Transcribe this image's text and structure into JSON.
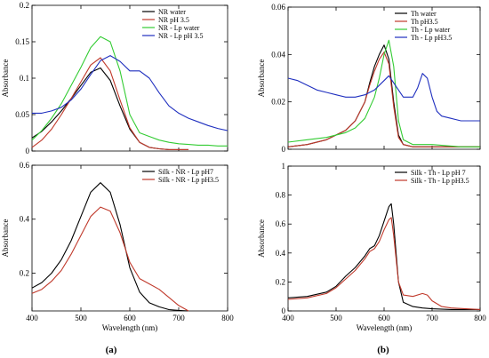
{
  "panel_labels": [
    "(a)",
    "(b)"
  ],
  "chart_data": [
    {
      "type": "line",
      "id": "a-top",
      "title": "",
      "xlabel": "",
      "ylabel": "Absorbance",
      "xlim": [
        400,
        800
      ],
      "ylim": [
        0,
        0.2
      ],
      "xticks": [],
      "yticks": [
        0,
        0.05,
        0.1,
        0.15,
        0.2
      ],
      "ytick_labels": [
        "0",
        "0.05",
        "0.1",
        "0.15",
        "0.2"
      ],
      "legend_position": "top-right",
      "series": [
        {
          "name": "NR water",
          "color": "#000000",
          "x": [
            400,
            420,
            440,
            460,
            480,
            500,
            520,
            540,
            560,
            580,
            600,
            620,
            640,
            660,
            680,
            700,
            720
          ],
          "y": [
            0.018,
            0.027,
            0.04,
            0.055,
            0.072,
            0.09,
            0.108,
            0.114,
            0.097,
            0.062,
            0.03,
            0.012,
            0.005,
            0.003,
            0.002,
            0.002,
            0.002
          ]
        },
        {
          "name": "NR pH 3.5",
          "color": "#c0392b",
          "x": [
            400,
            420,
            440,
            460,
            480,
            500,
            520,
            540,
            560,
            580,
            600,
            620,
            640,
            660,
            680,
            700,
            720
          ],
          "y": [
            0.005,
            0.015,
            0.03,
            0.05,
            0.072,
            0.095,
            0.118,
            0.128,
            0.11,
            0.07,
            0.032,
            0.012,
            0.005,
            0.003,
            0.002,
            0.002,
            0.002
          ]
        },
        {
          "name": "NR - Lp water",
          "color": "#33cc33",
          "x": [
            400,
            420,
            440,
            460,
            480,
            500,
            520,
            540,
            560,
            580,
            600,
            620,
            640,
            660,
            680,
            700,
            720,
            740,
            760,
            780,
            800
          ],
          "y": [
            0.015,
            0.028,
            0.045,
            0.065,
            0.09,
            0.115,
            0.142,
            0.157,
            0.15,
            0.11,
            0.05,
            0.025,
            0.02,
            0.015,
            0.012,
            0.01,
            0.009,
            0.008,
            0.008,
            0.007,
            0.007
          ]
        },
        {
          "name": "NR - Lp pH 3.5",
          "color": "#1f2fbf",
          "x": [
            400,
            420,
            440,
            460,
            480,
            500,
            520,
            540,
            560,
            580,
            600,
            620,
            640,
            660,
            680,
            700,
            720,
            740,
            760,
            780,
            800
          ],
          "y": [
            0.052,
            0.052,
            0.055,
            0.06,
            0.07,
            0.085,
            0.105,
            0.124,
            0.131,
            0.123,
            0.11,
            0.11,
            0.1,
            0.08,
            0.062,
            0.052,
            0.045,
            0.04,
            0.035,
            0.031,
            0.028
          ]
        }
      ]
    },
    {
      "type": "line",
      "id": "a-bottom",
      "title": "",
      "xlabel": "Wavelength (nm)",
      "ylabel": "Absorbance",
      "xlim": [
        400,
        800
      ],
      "ylim": [
        0.06,
        0.6
      ],
      "xticks": [
        400,
        500,
        600,
        700,
        800
      ],
      "xtick_labels": [
        "400",
        "500",
        "600",
        "700",
        "800"
      ],
      "yticks": [
        0.2,
        0.4,
        0.6
      ],
      "ytick_labels": [
        "0.2",
        "0.4",
        "0.6"
      ],
      "legend_position": "top-right",
      "series": [
        {
          "name": "Silk - NR - Lp pH7",
          "color": "#000000",
          "x": [
            400,
            420,
            440,
            460,
            480,
            500,
            520,
            540,
            560,
            580,
            600,
            620,
            640,
            660,
            680,
            700,
            720
          ],
          "y": [
            0.145,
            0.165,
            0.2,
            0.25,
            0.32,
            0.41,
            0.5,
            0.535,
            0.5,
            0.38,
            0.22,
            0.13,
            0.09,
            0.075,
            0.065,
            0.062,
            0.06
          ]
        },
        {
          "name": "Silk - NR - Lp pH3.5",
          "color": "#c0392b",
          "x": [
            400,
            420,
            440,
            460,
            480,
            500,
            520,
            540,
            560,
            580,
            600,
            620,
            640,
            660,
            680,
            700,
            720
          ],
          "y": [
            0.125,
            0.14,
            0.17,
            0.21,
            0.27,
            0.34,
            0.41,
            0.445,
            0.43,
            0.35,
            0.24,
            0.18,
            0.16,
            0.14,
            0.11,
            0.08,
            0.06
          ]
        }
      ]
    },
    {
      "type": "line",
      "id": "b-top",
      "title": "",
      "xlabel": "",
      "ylabel": "Absorbance",
      "xlim": [
        400,
        800
      ],
      "ylim": [
        0,
        0.06
      ],
      "xticks": [],
      "yticks": [
        0,
        0.02,
        0.04,
        0.06
      ],
      "ytick_labels": [
        "0",
        "0.02",
        "0.04",
        "0.06"
      ],
      "legend_position": "top-right",
      "series": [
        {
          "name": "Th water",
          "color": "#000000",
          "x": [
            400,
            440,
            480,
            520,
            540,
            560,
            570,
            580,
            590,
            600,
            610,
            620,
            630,
            640,
            660,
            700,
            760,
            800
          ],
          "y": [
            0.001,
            0.002,
            0.004,
            0.008,
            0.012,
            0.02,
            0.028,
            0.035,
            0.04,
            0.044,
            0.038,
            0.02,
            0.006,
            0.002,
            0.001,
            0.001,
            0.001,
            0.001
          ]
        },
        {
          "name": "Th pH3.5",
          "color": "#c0392b",
          "x": [
            400,
            440,
            480,
            520,
            540,
            560,
            570,
            580,
            590,
            600,
            610,
            620,
            630,
            640,
            660,
            700,
            760,
            800
          ],
          "y": [
            0.001,
            0.002,
            0.004,
            0.008,
            0.012,
            0.02,
            0.027,
            0.033,
            0.038,
            0.041,
            0.036,
            0.018,
            0.005,
            0.002,
            0.001,
            0.001,
            0.001,
            0.001
          ]
        },
        {
          "name": "Th - Lp water",
          "color": "#33cc33",
          "x": [
            400,
            440,
            480,
            520,
            540,
            560,
            580,
            590,
            600,
            610,
            620,
            630,
            640,
            660,
            700,
            760,
            800
          ],
          "y": [
            0.003,
            0.004,
            0.005,
            0.007,
            0.009,
            0.013,
            0.022,
            0.03,
            0.04,
            0.046,
            0.035,
            0.012,
            0.004,
            0.002,
            0.002,
            0.001,
            0.001
          ]
        },
        {
          "name": "Th - Lp pH3.5",
          "color": "#1f2fbf",
          "x": [
            400,
            420,
            440,
            460,
            480,
            500,
            520,
            540,
            560,
            580,
            600,
            610,
            620,
            640,
            660,
            670,
            680,
            690,
            700,
            710,
            720,
            740,
            760,
            780,
            800
          ],
          "y": [
            0.03,
            0.029,
            0.027,
            0.025,
            0.024,
            0.023,
            0.022,
            0.022,
            0.023,
            0.025,
            0.029,
            0.031,
            0.028,
            0.022,
            0.022,
            0.026,
            0.032,
            0.03,
            0.022,
            0.016,
            0.014,
            0.013,
            0.012,
            0.012,
            0.012
          ]
        }
      ]
    },
    {
      "type": "line",
      "id": "b-bottom",
      "title": "",
      "xlabel": "Wavelength (nm)",
      "ylabel": "Absorbance",
      "xlim": [
        400,
        800
      ],
      "ylim": [
        0,
        1
      ],
      "xticks": [
        400,
        500,
        600,
        700,
        800
      ],
      "xtick_labels": [
        "400",
        "500",
        "600",
        "700",
        "800"
      ],
      "yticks": [
        0,
        0.2,
        0.4,
        0.6,
        0.8,
        1
      ],
      "ytick_labels": [
        "0",
        "0.2",
        "0.4",
        "0.6",
        "0.8",
        "1"
      ],
      "legend_position": "top-right",
      "series": [
        {
          "name": "Silk - Th - Lp pH 7",
          "color": "#000000",
          "x": [
            400,
            440,
            480,
            500,
            520,
            540,
            560,
            570,
            580,
            590,
            600,
            610,
            615,
            620,
            630,
            640,
            660,
            680,
            700,
            740,
            800
          ],
          "y": [
            0.09,
            0.1,
            0.13,
            0.17,
            0.24,
            0.3,
            0.38,
            0.43,
            0.45,
            0.52,
            0.62,
            0.72,
            0.74,
            0.6,
            0.2,
            0.06,
            0.03,
            0.02,
            0.015,
            0.01,
            0.01
          ]
        },
        {
          "name": "Silk - Th - Lp pH3.5",
          "color": "#c0392b",
          "x": [
            400,
            440,
            480,
            500,
            520,
            540,
            560,
            570,
            580,
            590,
            600,
            610,
            615,
            620,
            630,
            640,
            660,
            680,
            690,
            700,
            720,
            740,
            800
          ],
          "y": [
            0.08,
            0.09,
            0.12,
            0.16,
            0.22,
            0.28,
            0.36,
            0.41,
            0.43,
            0.48,
            0.56,
            0.63,
            0.645,
            0.52,
            0.2,
            0.11,
            0.1,
            0.12,
            0.11,
            0.07,
            0.03,
            0.02,
            0.01
          ]
        }
      ]
    }
  ]
}
